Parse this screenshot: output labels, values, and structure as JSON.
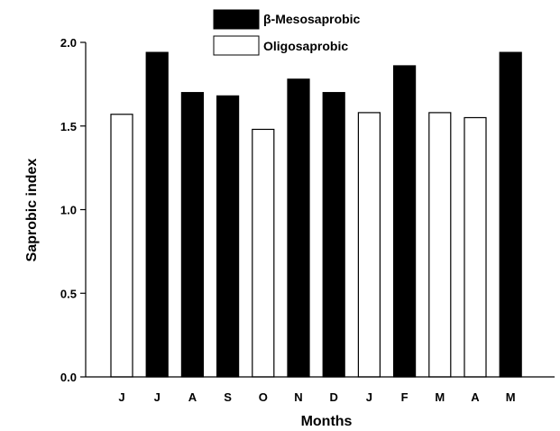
{
  "chart_data": {
    "type": "bar",
    "title": "",
    "xlabel": "Months",
    "ylabel": "Saprobic index",
    "ylim": [
      0,
      2.0
    ],
    "yticks": [
      "0.0",
      "0.5",
      "1.0",
      "1.5",
      "2.0"
    ],
    "categories": [
      "J",
      "J",
      "A",
      "S",
      "O",
      "N",
      "D",
      "J",
      "F",
      "M",
      "A",
      "M"
    ],
    "values": [
      1.57,
      1.94,
      1.7,
      1.68,
      1.48,
      1.78,
      1.7,
      1.58,
      1.86,
      1.58,
      1.55,
      1.94
    ],
    "classes": [
      "Oligosaprobic",
      "β-Mesosaprobic",
      "β-Mesosaprobic",
      "β-Mesosaprobic",
      "Oligosaprobic",
      "β-Mesosaprobic",
      "β-Mesosaprobic",
      "Oligosaprobic",
      "β-Mesosaprobic",
      "Oligosaprobic",
      "Oligosaprobic",
      "β-Mesosaprobic"
    ],
    "legend": [
      {
        "name": "β-Mesosaprobic",
        "color": "#000000"
      },
      {
        "name": "Oligosaprobic",
        "color": "#ffffff"
      }
    ],
    "legend_position": "top-center",
    "grid": false
  }
}
